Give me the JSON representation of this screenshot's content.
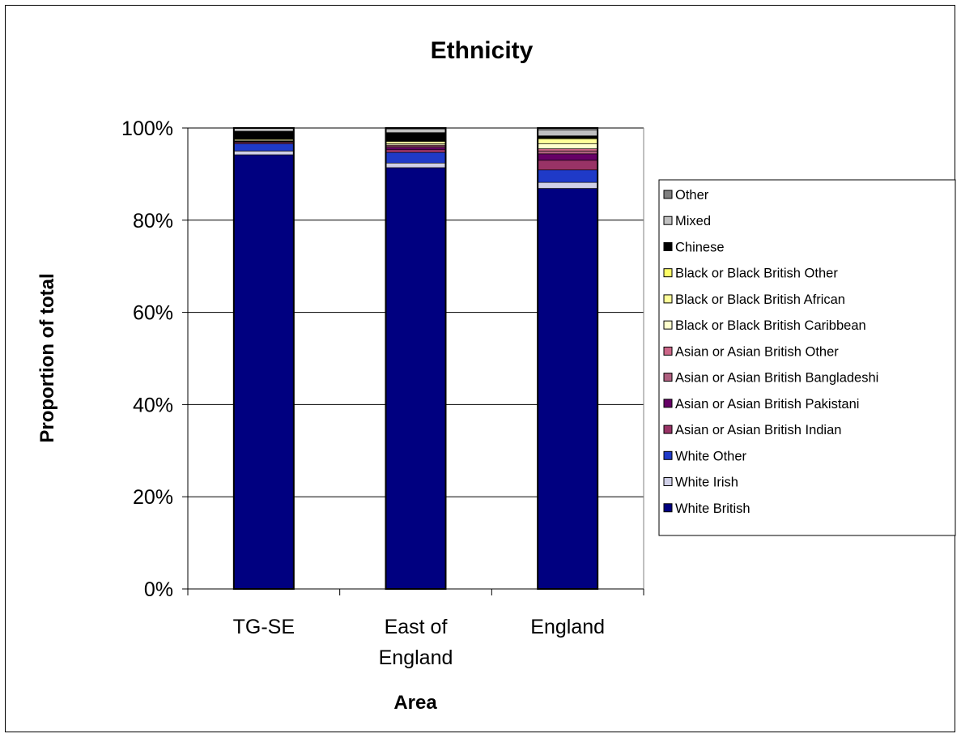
{
  "chart_data": {
    "type": "bar",
    "stacked": true,
    "percent_stacked": true,
    "title": "Ethnicity",
    "xlabel": "Area",
    "ylabel": "Proportion of total",
    "categories": [
      "TG-SE",
      "East of England",
      "England"
    ],
    "category_lines": [
      [
        "TG-SE"
      ],
      [
        "East of",
        "England"
      ],
      [
        "England"
      ]
    ],
    "ylim": [
      0,
      100
    ],
    "y_ticks": [
      "0%",
      "20%",
      "40%",
      "60%",
      "80%",
      "100%"
    ],
    "grid": true,
    "legend_position": "right",
    "series": [
      {
        "name": "White British",
        "color": "#000080",
        "values": [
          94.2,
          91.4,
          86.9
        ]
      },
      {
        "name": "White Irish",
        "color": "#d0d0e8",
        "values": [
          0.8,
          1.0,
          1.3
        ]
      },
      {
        "name": "White Other",
        "color": "#1f3ac8",
        "values": [
          1.6,
          2.3,
          2.7
        ]
      },
      {
        "name": "Asian or Asian British Indian",
        "color": "#993366",
        "values": [
          0.3,
          0.6,
          2.1
        ]
      },
      {
        "name": "Asian or Asian British Pakistani",
        "color": "#660066",
        "values": [
          0.1,
          0.5,
          1.4
        ]
      },
      {
        "name": "Asian or Asian British Bangladeshi",
        "color": "#b06080",
        "values": [
          0.1,
          0.3,
          0.6
        ]
      },
      {
        "name": "Asian or Asian British Other",
        "color": "#cc6688",
        "values": [
          0.1,
          0.2,
          0.5
        ]
      },
      {
        "name": "Black or Black British Caribbean",
        "color": "#ffffcc",
        "values": [
          0.2,
          0.3,
          1.1
        ]
      },
      {
        "name": "Black or Black British African",
        "color": "#ffff99",
        "values": [
          0.2,
          0.5,
          1.0
        ]
      },
      {
        "name": "Black or Black British Other",
        "color": "#ffff66",
        "values": [
          0.1,
          0.1,
          0.2
        ]
      },
      {
        "name": "Chinese",
        "color": "#000000",
        "values": [
          1.6,
          1.8,
          0.5
        ]
      },
      {
        "name": "Mixed",
        "color": "#c0c0c0",
        "values": [
          0.6,
          0.8,
          1.3
        ]
      },
      {
        "name": "Other",
        "color": "#808080",
        "values": [
          0.1,
          0.2,
          0.4
        ]
      }
    ]
  }
}
